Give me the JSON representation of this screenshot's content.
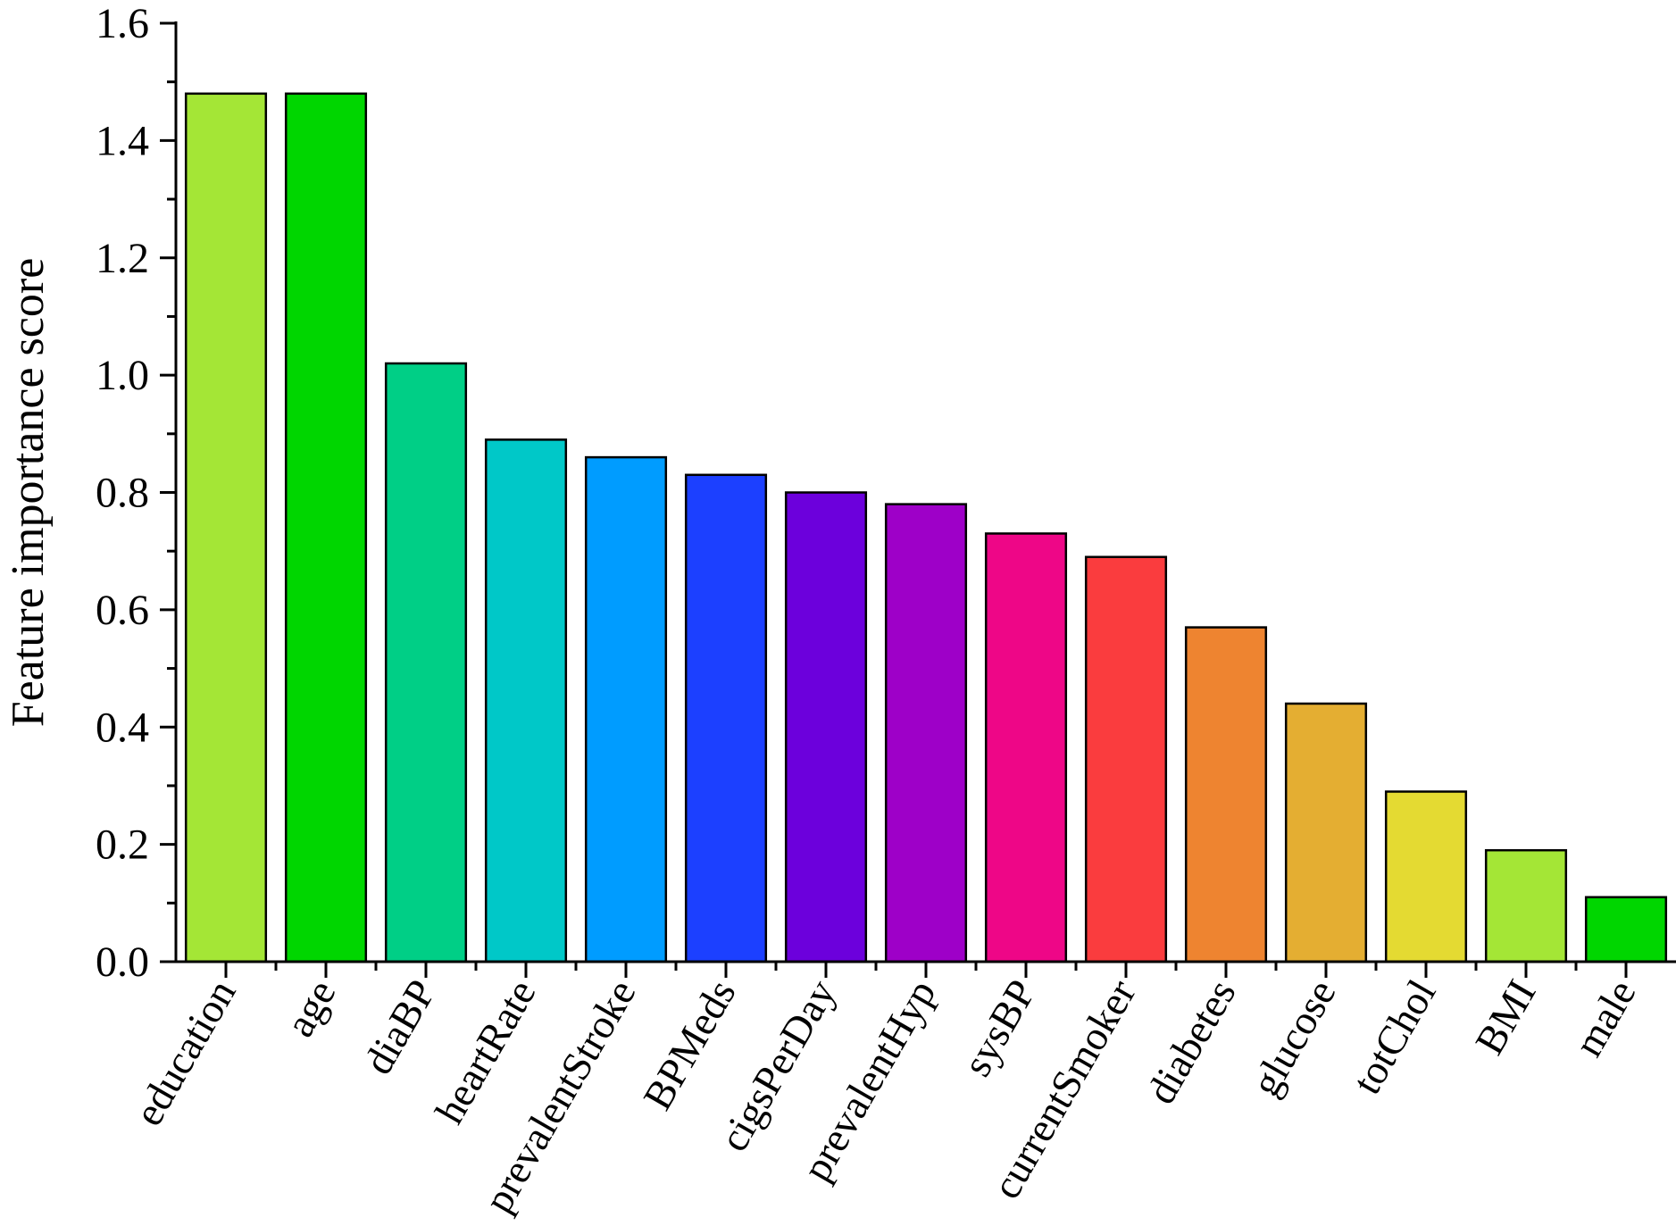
{
  "chart_data": {
    "type": "bar",
    "title": "",
    "xlabel": "",
    "ylabel": "Feature importance score",
    "ylim": [
      0,
      1.6
    ],
    "y_ticks": [
      "0.0",
      "0.2",
      "0.4",
      "0.6",
      "0.8",
      "1.0",
      "1.2",
      "1.4",
      "1.6"
    ],
    "grid": false,
    "legend": "none",
    "categories": [
      "education",
      "age",
      "diaBP",
      "heartRate",
      "prevalentStroke",
      "BPMeds",
      "cigsPerDay",
      "prevalentHyp",
      "sysBP",
      "currentSmoker",
      "diabetes",
      "glucose",
      "totChol",
      "BMI",
      "male"
    ],
    "values": [
      1.48,
      1.48,
      1.02,
      0.89,
      0.86,
      0.83,
      0.8,
      0.78,
      0.73,
      0.69,
      0.57,
      0.44,
      0.29,
      0.19,
      0.11
    ],
    "colors": [
      "#a4e636",
      "#00d600",
      "#00cf86",
      "#00c8c8",
      "#009cff",
      "#1c40ff",
      "#6c00dc",
      "#9e00c8",
      "#ee0687",
      "#fa3c3e",
      "#ee8430",
      "#e4ae32",
      "#e4da32",
      "#a4e636",
      "#00d600"
    ]
  }
}
